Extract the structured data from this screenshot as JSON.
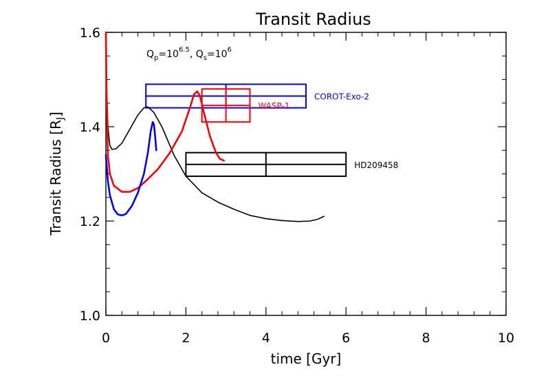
{
  "chart_data": {
    "type": "line",
    "title": "Transit Radius",
    "xlabel": "time [Gyr]",
    "ylabel": "Transit Radius [RJ]",
    "xlim": [
      0,
      10
    ],
    "ylim": [
      1.0,
      1.6
    ],
    "x_ticks": [
      0,
      2,
      4,
      6,
      8,
      10
    ],
    "x_tick_labels": [
      "0",
      "2",
      "4",
      "6",
      "8",
      "10"
    ],
    "y_ticks": [
      1.0,
      1.2,
      1.4,
      1.6
    ],
    "y_tick_labels": [
      "1.0",
      "1.2",
      "1.4",
      "1.6"
    ],
    "grid": false,
    "parameters_label": {
      "q_p_base": "Q",
      "q_p_sub": "p",
      "q_p_eq": "=10",
      "q_p_exp": "6.5",
      "sep": ", ",
      "q_s_base": "Q",
      "q_s_sub": "s",
      "q_s_eq": "=10",
      "q_s_exp": "6"
    },
    "series": [
      {
        "color": "#000000",
        "stroke_width": 1.6,
        "points": [
          [
            0.0,
            1.6
          ],
          [
            0.02,
            1.48
          ],
          [
            0.05,
            1.4
          ],
          [
            0.1,
            1.36
          ],
          [
            0.15,
            1.352
          ],
          [
            0.25,
            1.353
          ],
          [
            0.4,
            1.365
          ],
          [
            0.6,
            1.395
          ],
          [
            0.8,
            1.425
          ],
          [
            0.95,
            1.44
          ],
          [
            1.05,
            1.442
          ],
          [
            1.2,
            1.43
          ],
          [
            1.4,
            1.4
          ],
          [
            1.7,
            1.34
          ],
          [
            2.0,
            1.295
          ],
          [
            2.4,
            1.26
          ],
          [
            2.8,
            1.24
          ],
          [
            3.2,
            1.225
          ],
          [
            3.6,
            1.212
          ],
          [
            4.0,
            1.205
          ],
          [
            4.4,
            1.201
          ],
          [
            4.8,
            1.199
          ],
          [
            5.1,
            1.2
          ],
          [
            5.3,
            1.204
          ],
          [
            5.45,
            1.21
          ]
        ]
      },
      {
        "color": "#ff0000",
        "stroke_width": 2.6,
        "points": [
          [
            0.0,
            1.6
          ],
          [
            0.02,
            1.45
          ],
          [
            0.05,
            1.34
          ],
          [
            0.1,
            1.3
          ],
          [
            0.2,
            1.275
          ],
          [
            0.4,
            1.262
          ],
          [
            0.6,
            1.262
          ],
          [
            0.8,
            1.27
          ],
          [
            1.0,
            1.285
          ],
          [
            1.3,
            1.31
          ],
          [
            1.6,
            1.345
          ],
          [
            1.9,
            1.39
          ],
          [
            2.1,
            1.44
          ],
          [
            2.2,
            1.468
          ],
          [
            2.28,
            1.475
          ],
          [
            2.35,
            1.465
          ],
          [
            2.45,
            1.43
          ],
          [
            2.6,
            1.38
          ],
          [
            2.75,
            1.345
          ],
          [
            2.85,
            1.332
          ],
          [
            2.95,
            1.328
          ]
        ]
      },
      {
        "color": "#0000ff",
        "stroke_width": 2.6,
        "points": [
          [
            0.0,
            1.34
          ],
          [
            0.05,
            1.285
          ],
          [
            0.1,
            1.255
          ],
          [
            0.2,
            1.225
          ],
          [
            0.3,
            1.214
          ],
          [
            0.4,
            1.212
          ],
          [
            0.5,
            1.215
          ],
          [
            0.65,
            1.232
          ],
          [
            0.8,
            1.26
          ],
          [
            0.95,
            1.3
          ],
          [
            1.05,
            1.345
          ],
          [
            1.12,
            1.39
          ],
          [
            1.17,
            1.41
          ],
          [
            1.2,
            1.405
          ],
          [
            1.23,
            1.38
          ],
          [
            1.26,
            1.35
          ]
        ]
      }
    ],
    "boxes": [
      {
        "label": "COROT-Exo-2",
        "color": "#0000ff",
        "x_range": [
          1.0,
          5.0
        ],
        "y_range": [
          1.44,
          1.49
        ],
        "x_mid": 3.0,
        "y_mid": 1.465
      },
      {
        "label": "WASP-1",
        "color": "#ff0000",
        "x_range": [
          2.4,
          3.6
        ],
        "y_range": [
          1.41,
          1.48
        ],
        "x_mid": 3.0,
        "y_mid": 1.445
      },
      {
        "label": "HD209458",
        "color": "#000000",
        "x_range": [
          2.0,
          6.0
        ],
        "y_range": [
          1.295,
          1.345
        ],
        "x_mid": 4.0,
        "y_mid": 1.32
      }
    ]
  }
}
